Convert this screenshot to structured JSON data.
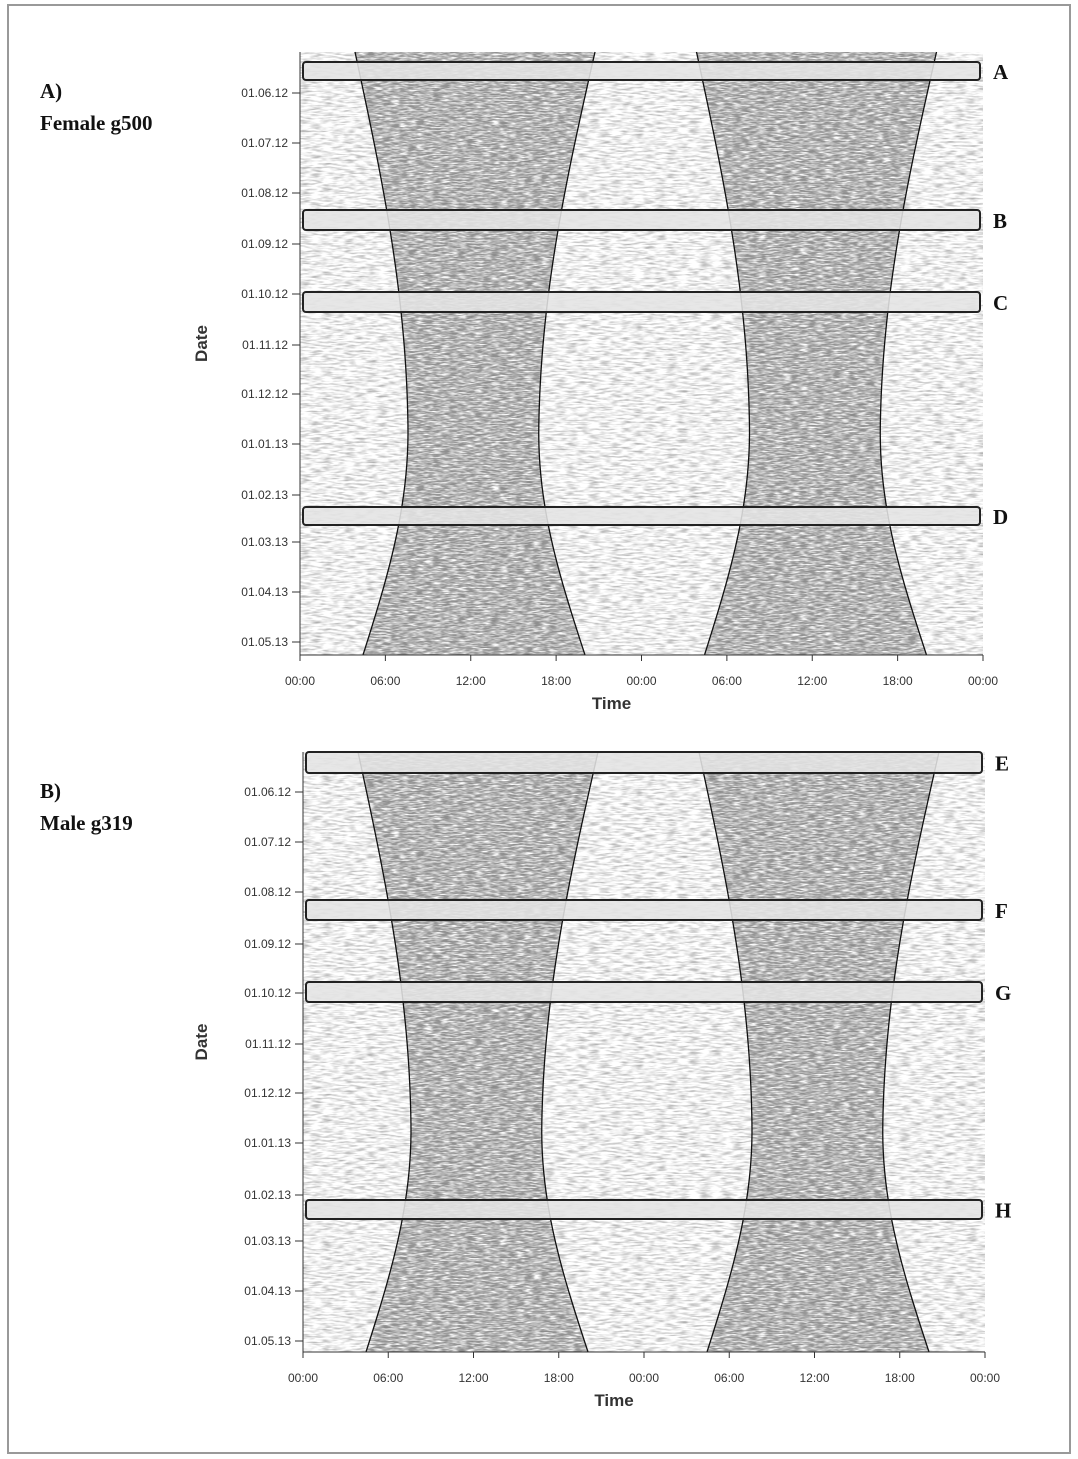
{
  "panels": [
    {
      "label": "A)",
      "title": "Female g500",
      "y_axis_label": "Date",
      "x_axis_label": "Time",
      "date_ticks": [
        "01.06.12",
        "01.07.12",
        "01.08.12",
        "01.09.12",
        "01.10.12",
        "01.11.12",
        "01.12.12",
        "01.01.13",
        "01.02.13",
        "01.03.13",
        "01.04.13",
        "01.05.13"
      ],
      "time_ticks": [
        "00:00",
        "06:00",
        "12:00",
        "18:00",
        "00:00",
        "06:00",
        "12:00",
        "18:00",
        "00:00"
      ],
      "boxes": [
        "A",
        "B",
        "C",
        "D"
      ]
    },
    {
      "label": "B)",
      "title": "Male g319",
      "y_axis_label": "Date",
      "x_axis_label": "Time",
      "date_ticks": [
        "01.06.12",
        "01.07.12",
        "01.08.12",
        "01.09.12",
        "01.10.12",
        "01.11.12",
        "01.12.12",
        "01.01.13",
        "01.02.13",
        "01.03.13",
        "01.04.13",
        "01.05.13"
      ],
      "time_ticks": [
        "00:00",
        "06:00",
        "12:00",
        "18:00",
        "00:00",
        "06:00",
        "12:00",
        "18:00",
        "00:00"
      ],
      "boxes": [
        "E",
        "F",
        "G",
        "H"
      ]
    }
  ]
}
